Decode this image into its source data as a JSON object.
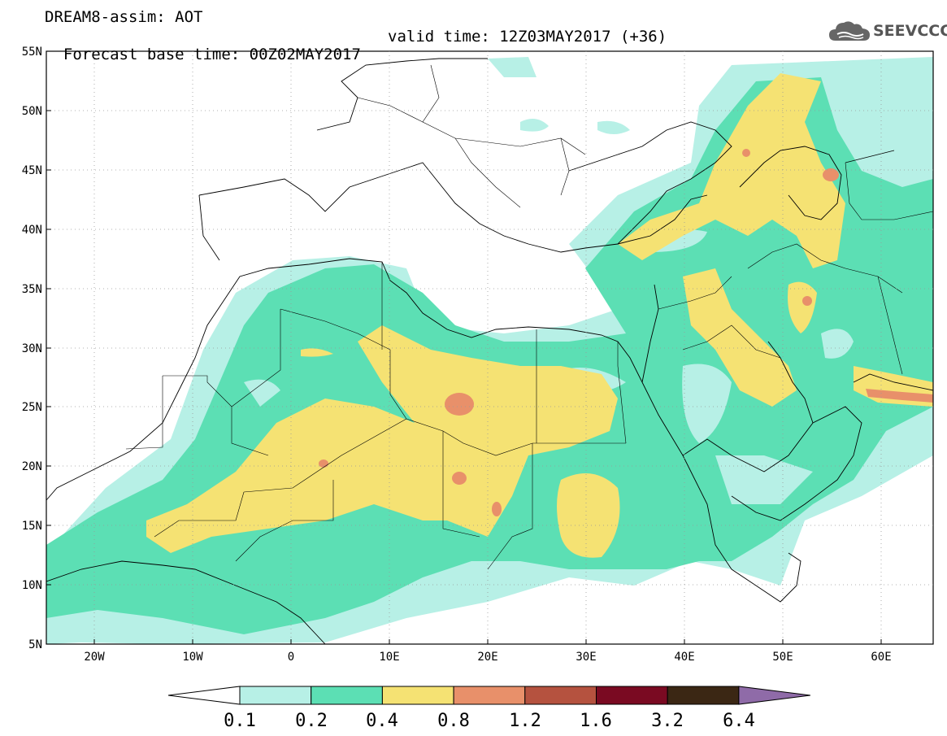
{
  "header": {
    "line1": "DREAM8-assim: AOT",
    "base_time": "Forecast base time: 00Z02MAY2017",
    "valid_time": "valid time: 12Z03MAY2017 (+36)"
  },
  "logo": {
    "text": "SEEVCCC",
    "icon": "cloud-icon"
  },
  "axes": {
    "lat_labels": [
      "55N",
      "50N",
      "45N",
      "40N",
      "35N",
      "30N",
      "25N",
      "20N",
      "15N",
      "10N",
      "5N"
    ],
    "lon_labels": [
      "20W",
      "10W",
      "0",
      "10E",
      "20E",
      "30E",
      "40E",
      "50E",
      "60E"
    ]
  },
  "colorbar": {
    "labels": [
      "0.1",
      "0.2",
      "0.4",
      "0.8",
      "1.2",
      "1.6",
      "3.2",
      "6.4"
    ],
    "colors": [
      "#ffffff",
      "#b7f0e6",
      "#5cdfb4",
      "#f5e273",
      "#e8906a",
      "#b5523f",
      "#7a0a22",
      "#3b2714",
      "#8f6ba8"
    ]
  },
  "palette": {
    "light": "#b7f0e6",
    "medium": "#5cdfb4",
    "yellow": "#f5e273",
    "orange": "#e8906a",
    "border": "#000000"
  }
}
